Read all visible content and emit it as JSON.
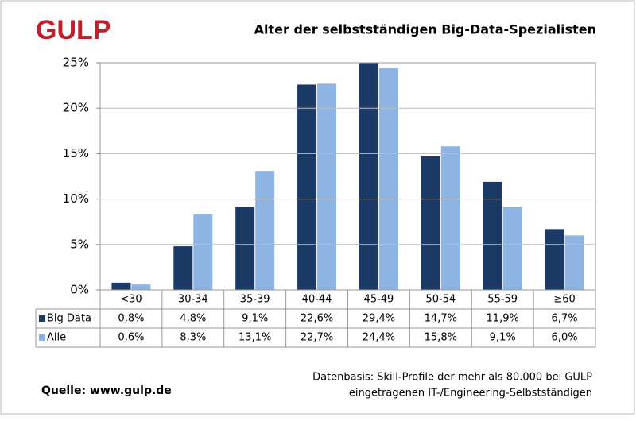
{
  "chart_data": {
    "type": "bar",
    "logo": "GULP",
    "title": "Alter der selbstständigen  Big-Data-Spezialisten",
    "categories": [
      "<30",
      "30-34",
      "35-39",
      "40-44",
      "45-49",
      "50-54",
      "55-59",
      "≥60"
    ],
    "series": [
      {
        "name": "Big Data",
        "color": "#1b3a66",
        "values": [
          0.8,
          4.8,
          9.1,
          22.6,
          29.4,
          14.7,
          11.9,
          6.7
        ],
        "value_labels": [
          "0,8%",
          "4,8%",
          "9,1%",
          "22,6%",
          "29,4%",
          "14,7%",
          "11,9%",
          "6,7%"
        ]
      },
      {
        "name": "Alle",
        "color": "#8eb4e3",
        "values": [
          0.6,
          8.3,
          13.1,
          22.7,
          24.4,
          15.8,
          9.1,
          6.0
        ],
        "value_labels": [
          "0,6%",
          "8,3%",
          "13,1%",
          "22,7%",
          "24,4%",
          "15,8%",
          "9,1%",
          "6,0%"
        ]
      }
    ],
    "ylim": [
      0,
      25
    ],
    "yticks": [
      {
        "value": 0,
        "label": "0%"
      },
      {
        "value": 5,
        "label": "5%"
      },
      {
        "value": 10,
        "label": "10%"
      },
      {
        "value": 15,
        "label": "15%"
      },
      {
        "value": 20,
        "label": "20%"
      },
      {
        "value": 25,
        "label": "25%"
      }
    ],
    "grid": true,
    "source": "Quelle: www.gulp.de",
    "note": [
      "Datenbasis: Skill-Profile der mehr als 80.000 bei GULP",
      "eingetragenen IT-/Engineering-Selbstständigen"
    ]
  }
}
